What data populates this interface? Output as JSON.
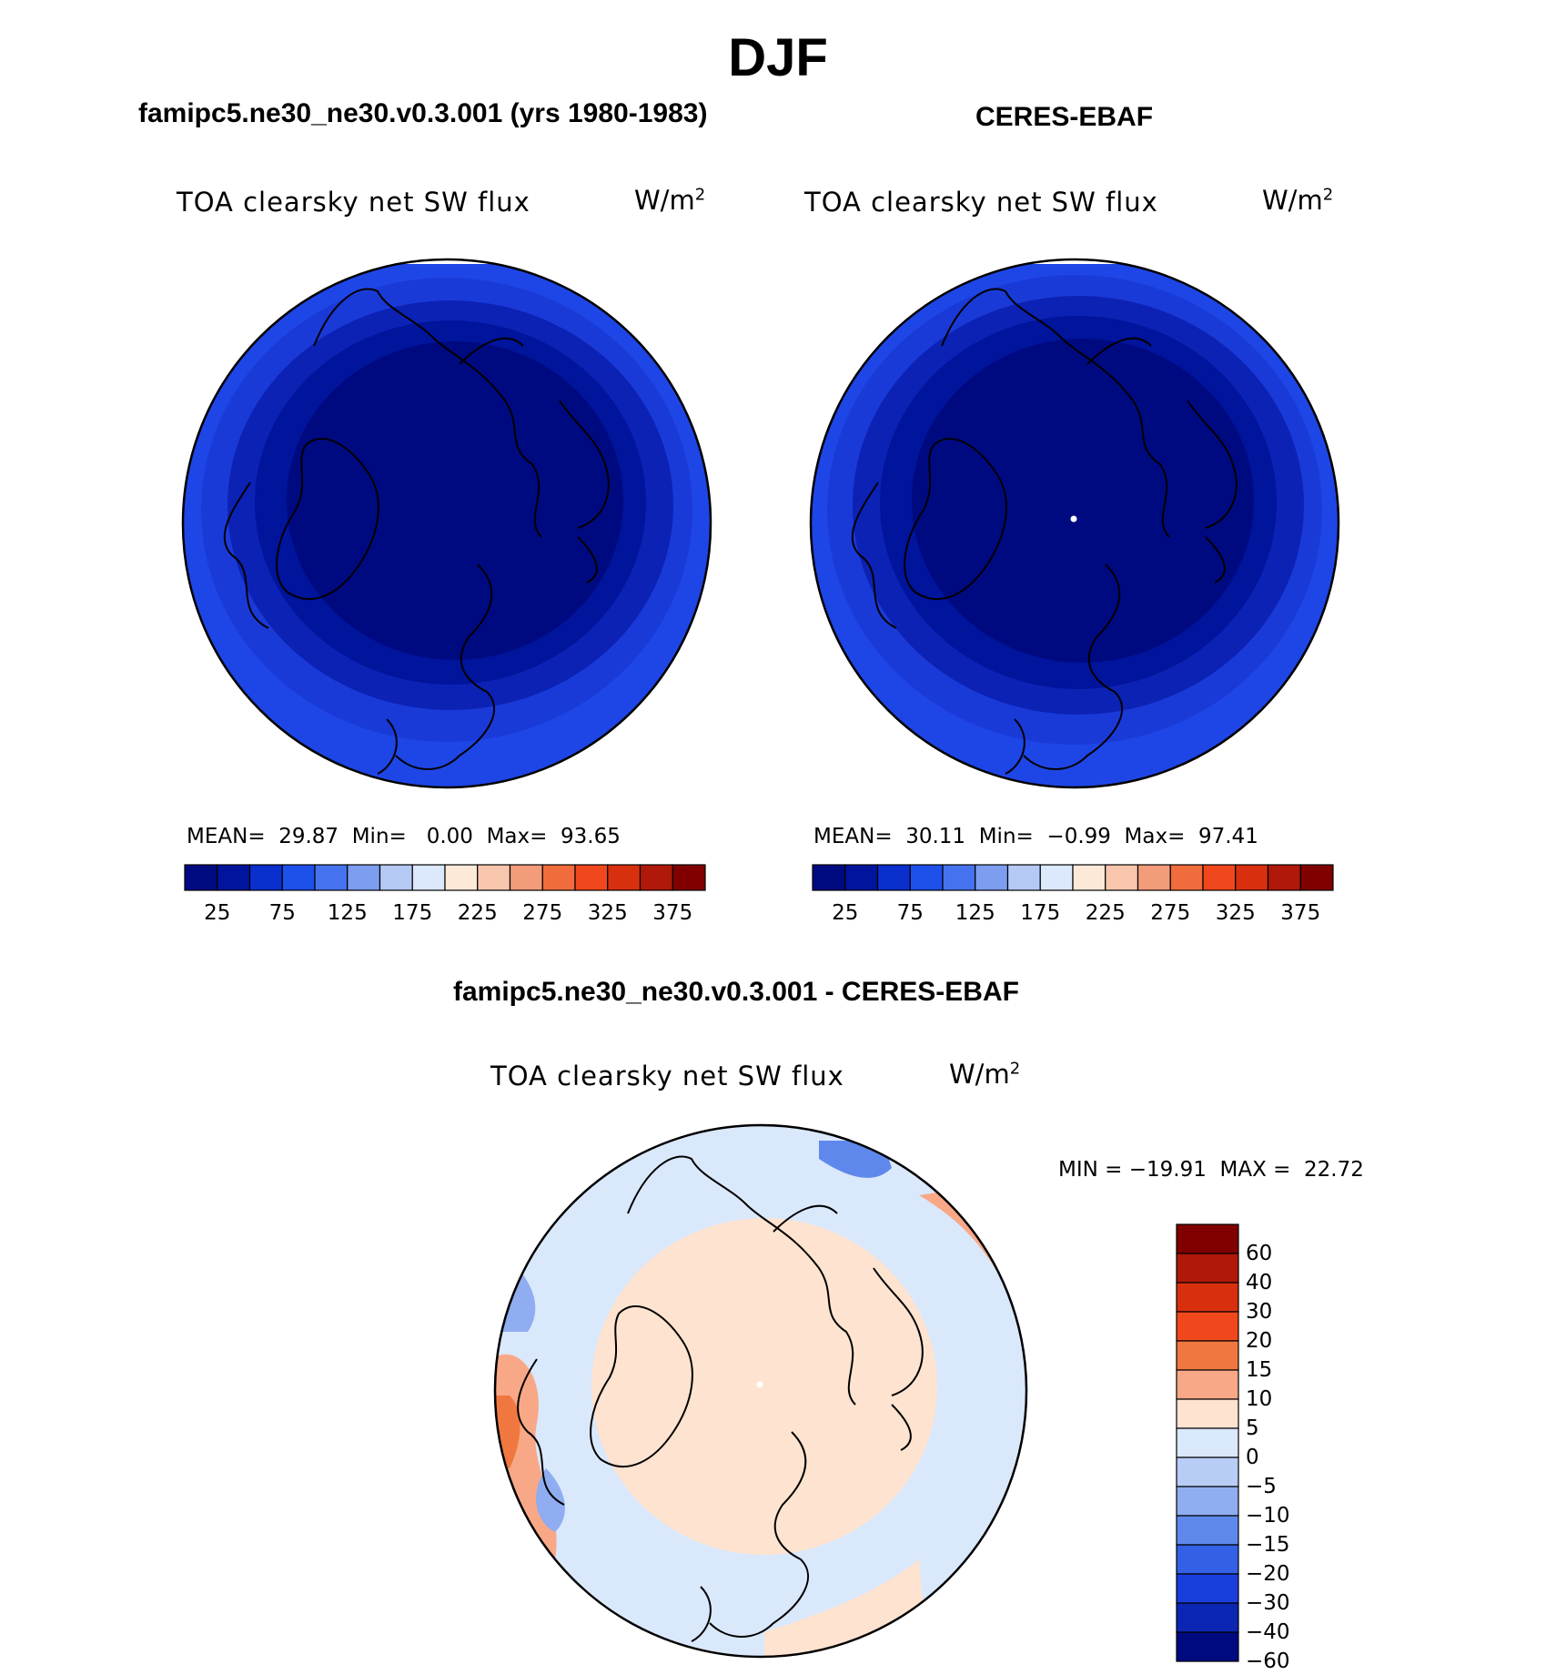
{
  "title": "DJF",
  "panels": [
    {
      "case_title": "famipc5.ne30_ne30.v0.3.001 (yrs 1980-1983)",
      "variable": "TOA clearsky net SW flux",
      "units_base": "W/m",
      "units_exp": "2",
      "mean_label": "MEAN=",
      "mean": "29.87",
      "min_label": "Min=",
      "min": "0.00",
      "max_label": "Max=",
      "max": "93.65"
    },
    {
      "case_title": "CERES-EBAF",
      "variable": "TOA clearsky net SW flux",
      "units_base": "W/m",
      "units_exp": "2",
      "mean_label": "MEAN=",
      "mean": "30.11",
      "min_label": "Min=",
      "min": "−0.99",
      "max_label": "Max=",
      "max": "97.41"
    }
  ],
  "diff": {
    "title": "famipc5.ne30_ne30.v0.3.001 - CERES-EBAF",
    "variable": "TOA clearsky net SW flux",
    "units_base": "W/m",
    "units_exp": "2",
    "min_label": "MIN =",
    "min": "−19.91",
    "max_label": "MAX =",
    "max": "22.72"
  },
  "chart_data": [
    {
      "type": "heatmap",
      "projection": "north-polar-stereographic",
      "legend": {
        "orientation": "horizontal",
        "colors": [
          "#000a80",
          "#00149c",
          "#0a2fcc",
          "#1e50ea",
          "#4572ee",
          "#7d9df0",
          "#b5c9f5",
          "#dce8fc",
          "#fde9d8",
          "#f8c6ad",
          "#f39c7a",
          "#f06c3c",
          "#f0481c",
          "#d8300e",
          "#b0180a",
          "#800000"
        ],
        "tick_labels": [
          "25",
          "75",
          "125",
          "175",
          "225",
          "275",
          "325",
          "375"
        ]
      }
    },
    {
      "type": "heatmap",
      "projection": "north-polar-stereographic",
      "legend": {
        "orientation": "horizontal",
        "colors": [
          "#000a80",
          "#00149c",
          "#0a2fcc",
          "#1e50ea",
          "#4572ee",
          "#7d9df0",
          "#b5c9f5",
          "#dce8fc",
          "#fde9d8",
          "#f8c6ad",
          "#f39c7a",
          "#f06c3c",
          "#f0481c",
          "#d8300e",
          "#b0180a",
          "#800000"
        ],
        "tick_labels": [
          "25",
          "75",
          "125",
          "175",
          "225",
          "275",
          "325",
          "375"
        ]
      }
    },
    {
      "type": "heatmap",
      "projection": "north-polar-stereographic",
      "legend": {
        "orientation": "vertical",
        "colors": [
          "#800000",
          "#b0180a",
          "#d8300e",
          "#f0481c",
          "#f07840",
          "#f8a886",
          "#fde3d0",
          "#dae8fc",
          "#b8cdf6",
          "#8fadf0",
          "#5f88ec",
          "#3460e6",
          "#1a3edc",
          "#0c26b4",
          "#000a80"
        ],
        "tick_labels": [
          "60",
          "40",
          "30",
          "20",
          "15",
          "10",
          "5",
          "0",
          "−5",
          "−10",
          "−15",
          "−20",
          "−30",
          "−40",
          "−60"
        ]
      }
    }
  ]
}
